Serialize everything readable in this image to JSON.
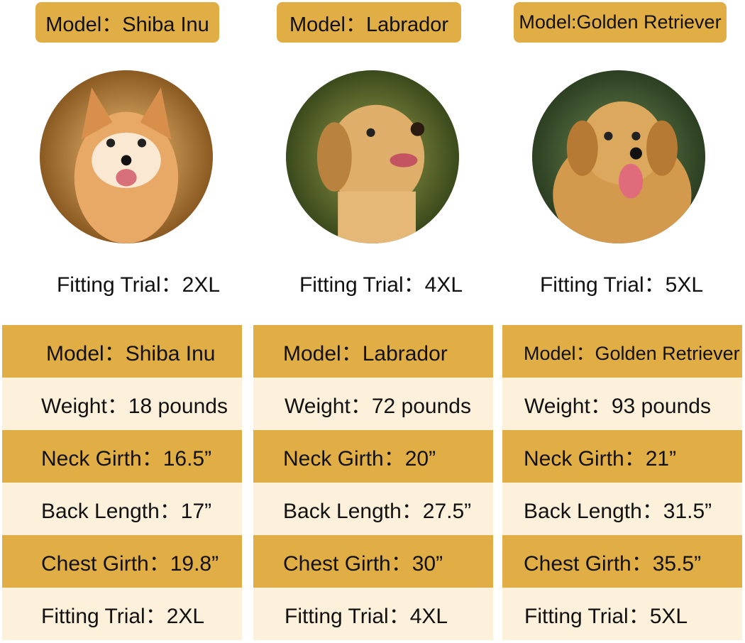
{
  "dogs": [
    {
      "model_label": "Model：Shiba Inu",
      "fitting": "Fitting Trial：2XL",
      "table": {
        "model": "Model：Shiba Inu",
        "weight": "Weight：18 pounds",
        "neck": "Neck Girth：16.5”",
        "back": "Back Length：17”",
        "chest": "Chest Girth：19.8”",
        "fitting": "Fitting Trial：2XL"
      }
    },
    {
      "model_label": "Model：Labrador",
      "fitting": "Fitting Trial：4XL",
      "table": {
        "model": "Model：Labrador",
        "weight": "Weight：72 pounds",
        "neck": "Neck Girth：20”",
        "back": "Back Length：27.5”",
        "chest": "Chest Girth：30”",
        "fitting": "Fitting Trial：4XL"
      }
    },
    {
      "model_label": "Model:Golden Retriever",
      "fitting": "Fitting Trial：5XL",
      "table": {
        "model": "Model：Golden Retriever",
        "weight": "Weight：93 pounds",
        "neck": "Neck Girth：21”",
        "back": "Back Length：31.5”",
        "chest": "Chest Girth：35.5”",
        "fitting": "Fitting Trial：5XL"
      }
    }
  ],
  "colors": {
    "gold": "#e1ad45",
    "cream": "#fdf1dc"
  }
}
